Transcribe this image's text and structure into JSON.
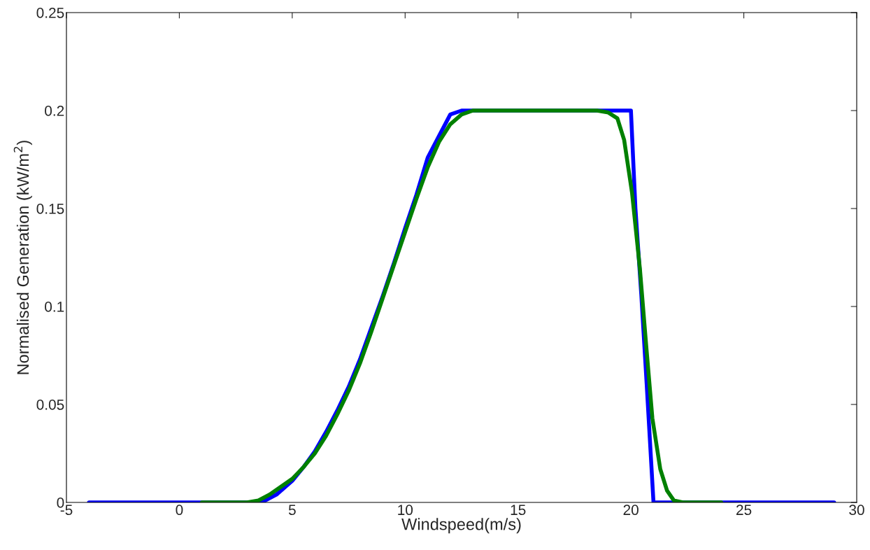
{
  "chart_data": {
    "type": "line",
    "xlabel": "Windspeed(m/s)",
    "ylabel": "Normalised Generation (kW/m$^{2}$)",
    "xlim": [
      -5,
      30
    ],
    "xticks": [
      -5,
      0,
      5,
      10,
      15,
      20,
      25,
      30
    ],
    "ylim": [
      0,
      0.25
    ],
    "yticks": [
      0,
      0.05,
      0.1,
      0.15,
      0.2,
      0.25
    ],
    "grid": false,
    "legend": false,
    "marker": "none",
    "line_style": "solid",
    "series": [
      {
        "color": "#0000ff",
        "x": [
          -4,
          3.3,
          3.8,
          4.3,
          5,
          5.5,
          6,
          6.5,
          7,
          7.5,
          8,
          8.5,
          9,
          9.5,
          10,
          10.5,
          11,
          11.5,
          12,
          12.5,
          13,
          19.95,
          20.0,
          20.2,
          20.46,
          20.7,
          21.0,
          29
        ],
        "values": [
          0,
          0,
          0.001,
          0.004,
          0.011,
          0.018,
          0.026,
          0.036,
          0.047,
          0.059,
          0.073,
          0.089,
          0.105,
          0.122,
          0.14,
          0.157,
          0.176,
          0.187,
          0.198,
          0.2,
          0.2,
          0.2,
          0.2,
          0.15,
          0.106,
          0.06,
          0,
          0
        ]
      },
      {
        "color": "#008000",
        "x": [
          1,
          3,
          3.5,
          4,
          4.5,
          5,
          5.5,
          6,
          6.5,
          7,
          7.5,
          8,
          8.5,
          9,
          9.5,
          10,
          10.5,
          11,
          11.5,
          12,
          12.5,
          13,
          13.5,
          18.5,
          19,
          19.4,
          19.7,
          20.05,
          20.4,
          20.67,
          20.95,
          21.3,
          21.6,
          21.9,
          22.3,
          24
        ],
        "values": [
          0,
          0,
          0.001,
          0.004,
          0.008,
          0.012,
          0.018,
          0.025,
          0.034,
          0.045,
          0.057,
          0.071,
          0.087,
          0.104,
          0.121,
          0.138,
          0.155,
          0.171,
          0.184,
          0.193,
          0.198,
          0.2,
          0.2,
          0.2,
          0.199,
          0.196,
          0.185,
          0.158,
          0.119,
          0.081,
          0.043,
          0.017,
          0.006,
          0.001,
          0,
          0
        ]
      }
    ]
  }
}
